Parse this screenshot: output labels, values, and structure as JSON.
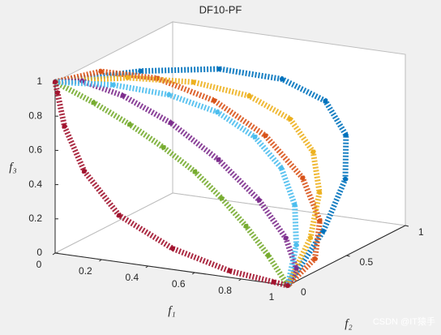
{
  "chart_data": {
    "type": "scatter3d",
    "title": "DF10-PF",
    "x_label": "f₁",
    "y_label": "f₂",
    "z_label": "f₃",
    "xlim": [
      0,
      1
    ],
    "ylim": [
      0,
      1
    ],
    "zlim": [
      0,
      1
    ],
    "xticks": [
      0,
      0.2,
      0.4,
      0.6,
      0.8,
      1
    ],
    "yticks": [
      0,
      0.5,
      1
    ],
    "zticks": [
      0,
      0.2,
      0.4,
      0.6,
      0.8,
      1
    ],
    "grid": false,
    "series": [
      {
        "color": "#0072BD",
        "x": [
          0,
          0.195,
          0.383,
          0.556,
          0.707,
          0.831,
          0.924,
          0.981,
          1
        ],
        "y": [
          0,
          0.34,
          0.64,
          0.83,
          0.9,
          0.83,
          0.64,
          0.34,
          0
        ],
        "z": [
          1,
          0.981,
          0.924,
          0.831,
          0.707,
          0.556,
          0.383,
          0.195,
          0
        ]
      },
      {
        "color": "#D95319",
        "x": [
          0,
          0.04,
          0.15,
          0.31,
          0.5,
          0.69,
          0.85,
          0.96,
          1
        ],
        "y": [
          0,
          0.31,
          0.57,
          0.74,
          0.8,
          0.74,
          0.57,
          0.31,
          0
        ],
        "z": [
          1,
          0.96,
          0.85,
          0.69,
          0.5,
          0.31,
          0.15,
          0.04,
          0
        ]
      },
      {
        "color": "#EDB120",
        "x": [
          0,
          0.195,
          0.383,
          0.556,
          0.707,
          0.831,
          0.924,
          0.981,
          1
        ],
        "y": [
          0,
          0.23,
          0.42,
          0.55,
          0.6,
          0.55,
          0.42,
          0.23,
          0
        ],
        "z": [
          1,
          0.981,
          0.924,
          0.831,
          0.707,
          0.556,
          0.383,
          0.195,
          0
        ]
      },
      {
        "color": "#7E2F8E",
        "x": [
          0,
          0.04,
          0.15,
          0.31,
          0.5,
          0.69,
          0.85,
          0.96,
          1
        ],
        "y": [
          0,
          0.15,
          0.28,
          0.37,
          0.4,
          0.37,
          0.28,
          0.15,
          0
        ],
        "z": [
          1,
          0.96,
          0.85,
          0.69,
          0.5,
          0.31,
          0.15,
          0.04,
          0
        ]
      },
      {
        "color": "#77AC30",
        "x": [
          0,
          0.125,
          0.25,
          0.375,
          0.5,
          0.625,
          0.75,
          0.875,
          1
        ],
        "y": [
          0,
          0.08,
          0.14,
          0.18,
          0.2,
          0.18,
          0.14,
          0.08,
          0
        ],
        "z": [
          1,
          0.875,
          0.75,
          0.625,
          0.5,
          0.375,
          0.25,
          0.125,
          0
        ]
      },
      {
        "color": "#4DBEEE",
        "x": [
          0,
          0.195,
          0.383,
          0.556,
          0.707,
          0.831,
          0.924,
          0.981,
          1
        ],
        "y": [
          0,
          0.11,
          0.21,
          0.28,
          0.3,
          0.28,
          0.21,
          0.11,
          0
        ],
        "z": [
          1,
          0.981,
          0.924,
          0.831,
          0.707,
          0.556,
          0.383,
          0.195,
          0
        ]
      },
      {
        "color": "#A2142F",
        "x": [
          0,
          0.0,
          0.02,
          0.1,
          0.25,
          0.48,
          0.73,
          0.93,
          1
        ],
        "y": [
          0,
          0.02,
          0.04,
          0.05,
          0.05,
          0.05,
          0.04,
          0.02,
          0
        ],
        "z": [
          1,
          0.93,
          0.73,
          0.48,
          0.25,
          0.1,
          0.02,
          0.0,
          0
        ]
      }
    ],
    "watermark": "CSDN @IT猿手"
  }
}
